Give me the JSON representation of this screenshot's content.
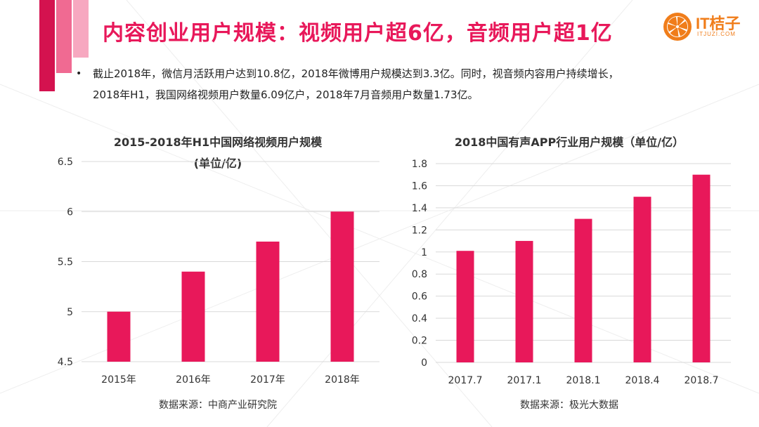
{
  "header": {
    "title": "内容创业用户规模：视频用户超6亿，音频用户超1亿"
  },
  "logo": {
    "name": "IT桔子",
    "sub": "ITJUZI.COM",
    "icon": "orange-slice-icon",
    "color": "#f07d1a"
  },
  "summary": {
    "line1": "截止2018年，微信月活跃用户达到10.8亿，2018年微博用户规模达到3.3亿。同时，视音频内容用户持续增长，",
    "line2": "2018年H1，我国网络视频用户数量6.09亿户，2018年7月音频用户数量1.73亿。"
  },
  "colors": {
    "accent": "#e8185a",
    "deco1": "#d4124f",
    "deco2": "#f06a92",
    "deco3": "#f7a8c0"
  },
  "chart_data": [
    {
      "type": "bar",
      "title_line1": "2015-2018年H1中国网络视频用户规模",
      "title_line2": "(单位/亿)",
      "categories": [
        "2015年",
        "2016年",
        "2017年",
        "2018年"
      ],
      "values": [
        5.0,
        5.4,
        5.7,
        6.0
      ],
      "ylim": [
        4.5,
        6.5
      ],
      "yticks": [
        4.5,
        5,
        5.5,
        6,
        6.5
      ],
      "grid": true,
      "source": "数据来源：中商产业研究院"
    },
    {
      "type": "bar",
      "title_line1": "2018中国有声APP行业用户规模（单位/亿）",
      "categories": [
        "2017.7",
        "2017.1",
        "2018.1",
        "2018.4",
        "2018.7"
      ],
      "values": [
        1.01,
        1.1,
        1.3,
        1.5,
        1.7
      ],
      "ylim": [
        0,
        1.8
      ],
      "yticks": [
        0,
        0.2,
        0.4,
        0.6,
        0.8,
        1,
        1.2,
        1.4,
        1.6,
        1.8
      ],
      "grid": true,
      "source": "数据来源：极光大数据"
    }
  ]
}
